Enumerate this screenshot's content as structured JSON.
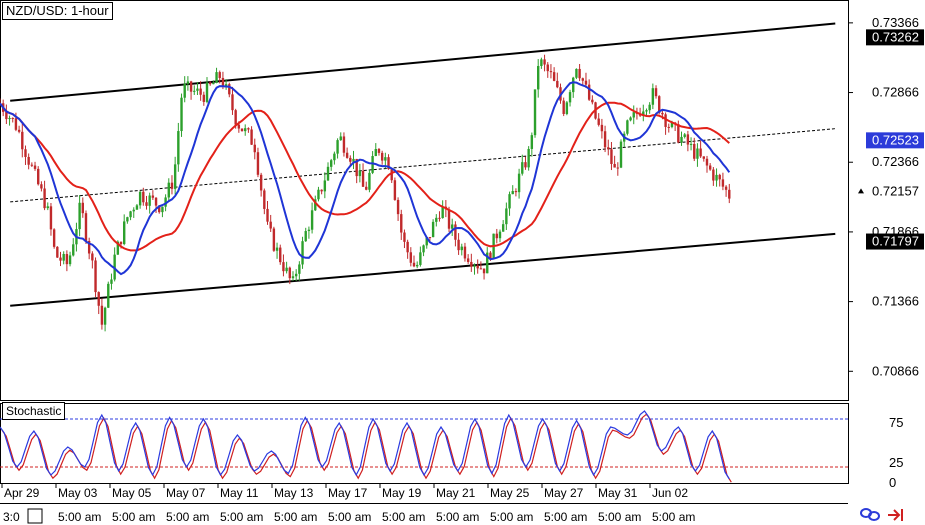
{
  "title": "NZD/USD: 1-hour",
  "indicator_label": "Stochastic",
  "colors": {
    "candle_up": "#2ca02c",
    "candle_down": "#c0292b",
    "ma_fast": "#1f35d6",
    "ma_slow": "#e32119",
    "stoch_k": "#2b3ae0",
    "stoch_d": "#d02020",
    "highlight_blue": "#2c3bd9",
    "highlight_black": "#000000",
    "channel": "#000000"
  },
  "price_axis": {
    "ticks": [
      "0.73366",
      "0.72866",
      "0.72366",
      "0.71866",
      "0.71366",
      "0.70866"
    ],
    "tick_values": [
      0.73366,
      0.72866,
      0.72366,
      0.71866,
      0.71366,
      0.70866
    ],
    "range": [
      0.7066,
      0.7353
    ],
    "labels": [
      {
        "text": "0.73262",
        "value": 0.73262,
        "style": "black"
      },
      {
        "text": "0.72523",
        "value": 0.72523,
        "style": "blue"
      },
      {
        "text": "0.72157",
        "value": 0.72157,
        "style": "current"
      },
      {
        "text": "0.71797",
        "value": 0.71797,
        "style": "black"
      }
    ]
  },
  "stoch_axis": {
    "ticks": [
      "75",
      "25",
      "0"
    ],
    "tick_values": [
      75,
      25,
      0
    ],
    "levels": [
      80,
      20
    ],
    "range": [
      0,
      100
    ]
  },
  "time_axis": {
    "dates": [
      "Apr 29",
      "May 03",
      "May 05",
      "May 07",
      "May 11",
      "May 13",
      "May 17",
      "May 19",
      "May 21",
      "May 25",
      "May 27",
      "May 31",
      "Jun 02"
    ],
    "times": [
      "3:0",
      "5:00 am",
      "5:00 am",
      "5:00 am",
      "5:00 am",
      "5:00 am",
      "5:00 am",
      "5:00 am",
      "5:00 am",
      "5:00 am",
      "5:00 am",
      "5:00 am",
      "5:00 am"
    ]
  },
  "chart_data": {
    "type": "candlestick",
    "title": "NZD/USD: 1-hour",
    "indicators": [
      "moving average (fast)",
      "moving average (slow)",
      "Stochastic"
    ],
    "channel": {
      "upper": [
        [
          0,
          0.728
        ],
        [
          1,
          0.7337
        ]
      ],
      "lower": [
        [
          0,
          0.7133
        ],
        [
          1,
          0.7186
        ]
      ],
      "middle_dotted": [
        [
          0,
          0.72075
        ],
        [
          1,
          0.72615
        ]
      ]
    },
    "close_path": [
      [
        0,
        0.7279
      ],
      [
        0.02,
        0.7262
      ],
      [
        0.04,
        0.7228
      ],
      [
        0.055,
        0.7205
      ],
      [
        0.065,
        0.717
      ],
      [
        0.08,
        0.7163
      ],
      [
        0.095,
        0.7205
      ],
      [
        0.11,
        0.716
      ],
      [
        0.12,
        0.712
      ],
      [
        0.135,
        0.7168
      ],
      [
        0.15,
        0.7197
      ],
      [
        0.165,
        0.7214
      ],
      [
        0.19,
        0.7205
      ],
      [
        0.205,
        0.7225
      ],
      [
        0.215,
        0.729
      ],
      [
        0.24,
        0.7285
      ],
      [
        0.26,
        0.7299
      ],
      [
        0.28,
        0.7265
      ],
      [
        0.3,
        0.725
      ],
      [
        0.315,
        0.719
      ],
      [
        0.325,
        0.7175
      ],
      [
        0.345,
        0.7148
      ],
      [
        0.36,
        0.7185
      ],
      [
        0.38,
        0.722
      ],
      [
        0.4,
        0.7255
      ],
      [
        0.415,
        0.724
      ],
      [
        0.43,
        0.7215
      ],
      [
        0.445,
        0.7248
      ],
      [
        0.46,
        0.7235
      ],
      [
        0.475,
        0.718
      ],
      [
        0.49,
        0.716
      ],
      [
        0.5,
        0.7175
      ],
      [
        0.52,
        0.7205
      ],
      [
        0.54,
        0.7178
      ],
      [
        0.555,
        0.7168
      ],
      [
        0.57,
        0.716
      ],
      [
        0.59,
        0.7192
      ],
      [
        0.61,
        0.7222
      ],
      [
        0.625,
        0.7245
      ],
      [
        0.635,
        0.731
      ],
      [
        0.65,
        0.7298
      ],
      [
        0.665,
        0.7275
      ],
      [
        0.68,
        0.7308
      ],
      [
        0.7,
        0.7272
      ],
      [
        0.71,
        0.7255
      ],
      [
        0.725,
        0.723
      ],
      [
        0.74,
        0.7262
      ],
      [
        0.755,
        0.7275
      ],
      [
        0.77,
        0.7285
      ],
      [
        0.79,
        0.7262
      ],
      [
        0.81,
        0.725
      ],
      [
        0.83,
        0.7236
      ],
      [
        0.845,
        0.7225
      ],
      [
        0.86,
        0.7213
      ]
    ],
    "stochastic_k": [
      [
        0.0,
        70
      ],
      [
        0.02,
        20
      ],
      [
        0.04,
        65
      ],
      [
        0.06,
        10
      ],
      [
        0.08,
        45
      ],
      [
        0.1,
        20
      ],
      [
        0.12,
        85
      ],
      [
        0.14,
        15
      ],
      [
        0.16,
        75
      ],
      [
        0.18,
        10
      ],
      [
        0.2,
        82
      ],
      [
        0.22,
        20
      ],
      [
        0.24,
        80
      ],
      [
        0.26,
        10
      ],
      [
        0.28,
        60
      ],
      [
        0.3,
        15
      ],
      [
        0.32,
        40
      ],
      [
        0.34,
        12
      ],
      [
        0.36,
        82
      ],
      [
        0.38,
        20
      ],
      [
        0.4,
        75
      ],
      [
        0.42,
        10
      ],
      [
        0.44,
        80
      ],
      [
        0.46,
        15
      ],
      [
        0.48,
        75
      ],
      [
        0.5,
        10
      ],
      [
        0.52,
        70
      ],
      [
        0.54,
        15
      ],
      [
        0.56,
        80
      ],
      [
        0.58,
        12
      ],
      [
        0.6,
        85
      ],
      [
        0.62,
        20
      ],
      [
        0.64,
        80
      ],
      [
        0.66,
        15
      ],
      [
        0.68,
        78
      ],
      [
        0.7,
        10
      ],
      [
        0.72,
        70
      ],
      [
        0.74,
        60
      ],
      [
        0.76,
        90
      ],
      [
        0.78,
        40
      ],
      [
        0.8,
        70
      ],
      [
        0.82,
        15
      ],
      [
        0.84,
        65
      ],
      [
        0.86,
        5
      ]
    ],
    "stoch_levels": [
      80,
      20
    ]
  }
}
